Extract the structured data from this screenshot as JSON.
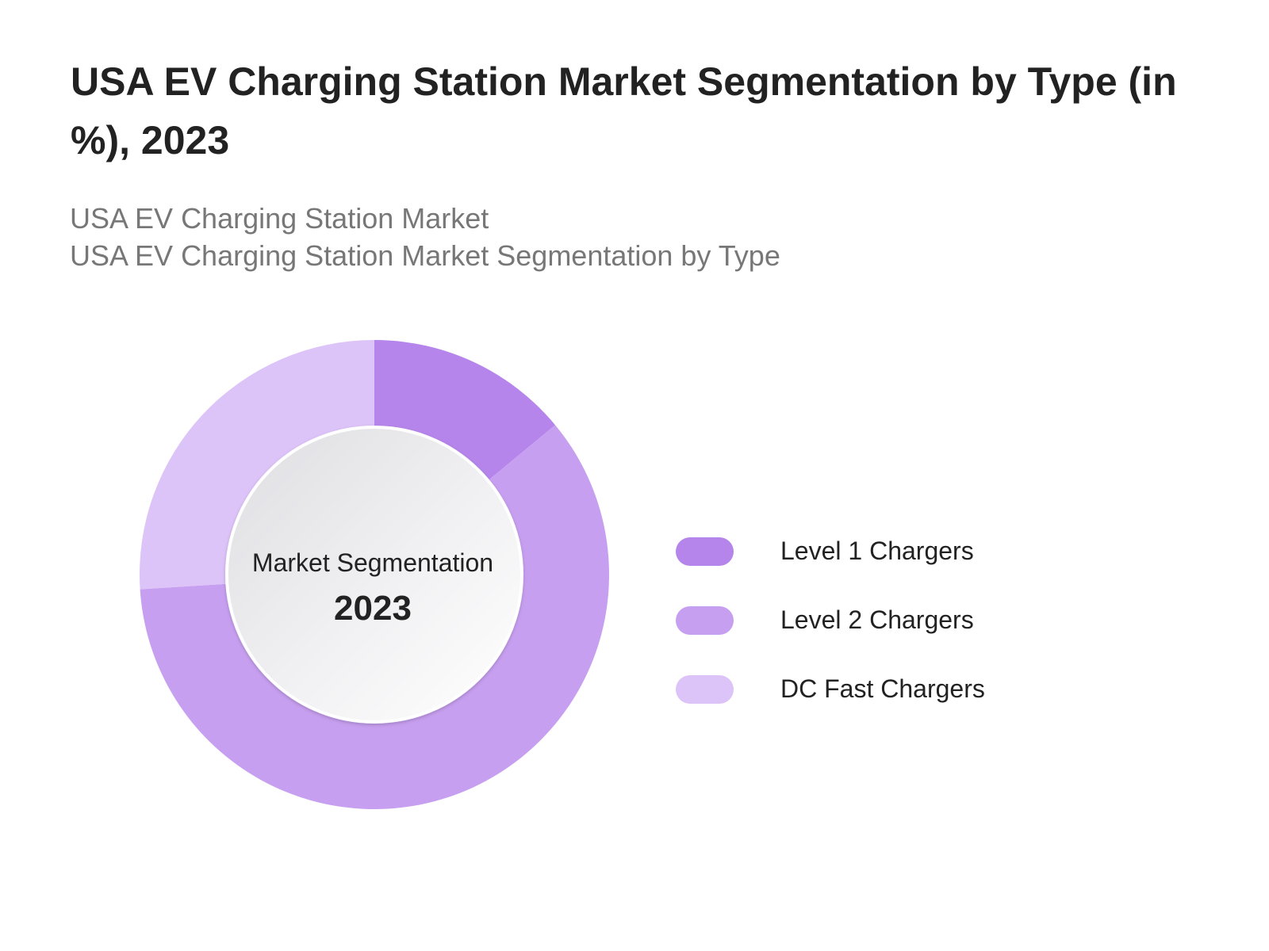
{
  "title": "USA EV Charging Station Market Segmentation by Type (in %), 2023",
  "subtitle_line1": "USA EV Charging Station Market",
  "subtitle_line2": "USA EV Charging Station Market Segmentation by Type",
  "center": {
    "label": "Market Segmentation",
    "year": "2023"
  },
  "chart_data": {
    "type": "pie",
    "variant": "donut",
    "title": "USA EV Charging Station Market Segmentation by Type (in %), 2023",
    "categories": [
      "Level 1 Chargers",
      "Level 2 Chargers",
      "DC Fast Chargers"
    ],
    "values": [
      14,
      60,
      26
    ],
    "colors": [
      "#b585eb",
      "#c79ff0",
      "#dcc3f8"
    ],
    "legend_position": "right"
  }
}
